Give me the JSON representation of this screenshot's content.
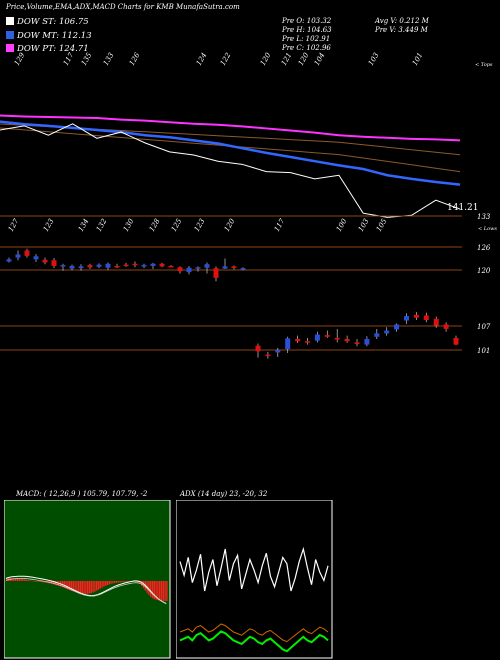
{
  "header": {
    "title": "Price,Volume,EMA,ADX,MACD Charts for KMB MunafaSutra.com",
    "prev_open": "Pre   O: 103.32",
    "prev_high": "Pre   H: 104.63",
    "prev_low": "Pre   L: 102.91",
    "prev_close": "Pre   C: 102.96",
    "avg_volume": "Avg V: 0.212  M",
    "prev_volume": "Pre   V: 3.449  M"
  },
  "legend": [
    {
      "label": "DOW ST: 106.75",
      "color": "#ffffff"
    },
    {
      "label": "DOW MT: 112.13",
      "color": "#3060e0"
    },
    {
      "label": "DOW PT: 124.71",
      "color": "#ff40ff"
    }
  ],
  "colors": {
    "up": "#2a4fd8",
    "down": "#e01010",
    "ema_fast": "#3366ff",
    "ema_slow": "#ff33ff",
    "level_line": "#8b4513",
    "adx_line": "#00ee00",
    "di_line": "#cc6600"
  },
  "chart_data": [
    {
      "type": "line",
      "title": "",
      "top_ticks": [
        "129",
        "117",
        "135",
        "133",
        "126",
        "124",
        "122",
        "120",
        "121",
        "120",
        "104",
        "103",
        "101"
      ],
      "top_axis_label": "< Tops",
      "bottom_ticks": [
        "127",
        "123",
        "134",
        "132",
        "130",
        "128",
        "125",
        "123",
        "120",
        "117",
        "100",
        "103",
        "105"
      ],
      "bottom_axis_label": "< Lows",
      "last_value_label": "141.21",
      "series": [
        {
          "values": [
            131.8,
            131.6,
            131.5,
            131.4,
            131.3,
            131.0,
            130.8,
            130.5,
            130.2,
            130.0,
            129.7,
            129.3,
            128.9,
            128.5,
            128.0,
            127.7,
            127.5,
            127.3,
            127.2,
            127.0
          ]
        },
        {
          "values": [
            130.6,
            130.1,
            129.8,
            129.4,
            129.0,
            128.6,
            128.0,
            127.6,
            127.0,
            126.4,
            125.5,
            124.6,
            123.8,
            123.0,
            122.2,
            121.5,
            120.3,
            119.6,
            119.0,
            118.5
          ]
        },
        {
          "values": [
            129.0,
            129.8,
            128.0,
            130.2,
            127.4,
            128.6,
            126.5,
            124.8,
            124.2,
            123.0,
            122.4,
            121.0,
            120.8,
            119.6,
            120.3,
            113.0,
            112.2,
            112.6,
            115.5,
            113.8
          ]
        }
      ]
    },
    {
      "type": "candlestick",
      "title": "",
      "levels": [
        "133",
        "126",
        "120",
        "107",
        "101"
      ],
      "candles": [
        {
          "o": 125.6,
          "h": 126.0,
          "l": 124.9,
          "c": 125.1,
          "dir": "up"
        },
        {
          "o": 126.0,
          "h": 127.6,
          "l": 125.4,
          "c": 126.7,
          "dir": "up"
        },
        {
          "o": 127.6,
          "h": 128.0,
          "l": 126.0,
          "c": 126.4,
          "dir": "down"
        },
        {
          "o": 126.3,
          "h": 126.8,
          "l": 125.0,
          "c": 125.6,
          "dir": "up"
        },
        {
          "o": 125.5,
          "h": 126.0,
          "l": 124.5,
          "c": 124.9,
          "dir": "down"
        },
        {
          "o": 125.4,
          "h": 125.9,
          "l": 123.6,
          "c": 124.1,
          "dir": "down"
        },
        {
          "o": 124.0,
          "h": 124.6,
          "l": 123.0,
          "c": 124.3,
          "dir": "up"
        },
        {
          "o": 124.1,
          "h": 124.4,
          "l": 123.1,
          "c": 123.5,
          "dir": "up"
        },
        {
          "o": 123.6,
          "h": 124.5,
          "l": 123.0,
          "c": 124.0,
          "dir": "up"
        },
        {
          "o": 124.3,
          "h": 124.6,
          "l": 123.4,
          "c": 123.8,
          "dir": "down"
        },
        {
          "o": 123.9,
          "h": 124.7,
          "l": 123.6,
          "c": 124.4,
          "dir": "up"
        },
        {
          "o": 124.6,
          "h": 124.9,
          "l": 123.2,
          "c": 123.7,
          "dir": "up"
        },
        {
          "o": 124.1,
          "h": 124.6,
          "l": 123.6,
          "c": 124.0,
          "dir": "down"
        },
        {
          "o": 124.4,
          "h": 124.8,
          "l": 123.9,
          "c": 124.2,
          "dir": "down"
        },
        {
          "o": 124.6,
          "h": 125.1,
          "l": 123.8,
          "c": 124.3,
          "dir": "down"
        },
        {
          "o": 124.3,
          "h": 124.6,
          "l": 123.6,
          "c": 124.0,
          "dir": "up"
        },
        {
          "o": 124.1,
          "h": 124.8,
          "l": 123.4,
          "c": 124.6,
          "dir": "up"
        },
        {
          "o": 124.6,
          "h": 124.8,
          "l": 123.8,
          "c": 124.0,
          "dir": "down"
        },
        {
          "o": 124.0,
          "h": 124.3,
          "l": 123.8,
          "c": 124.1,
          "dir": "down"
        },
        {
          "o": 123.8,
          "h": 124.0,
          "l": 122.4,
          "c": 122.9,
          "dir": "down"
        },
        {
          "o": 122.7,
          "h": 124.1,
          "l": 122.2,
          "c": 123.7,
          "dir": "up"
        },
        {
          "o": 123.5,
          "h": 124.0,
          "l": 122.8,
          "c": 123.8,
          "dir": "up"
        },
        {
          "o": 124.5,
          "h": 124.9,
          "l": 122.4,
          "c": 123.7,
          "dir": "up"
        },
        {
          "o": 123.6,
          "h": 124.0,
          "l": 120.6,
          "c": 121.4,
          "dir": "down"
        },
        {
          "o": 123.5,
          "h": 125.8,
          "l": 123.4,
          "c": 124.0,
          "dir": "up"
        },
        {
          "o": 124.0,
          "h": 124.2,
          "l": 123.3,
          "c": 123.8,
          "dir": "down"
        },
        {
          "o": 123.4,
          "h": 123.8,
          "l": 123.1,
          "c": 123.6,
          "dir": "up"
        },
        {
          "o": 102.8,
          "h": 103.2,
          "l": 100.7,
          "c": 101.8,
          "dir": "down"
        },
        {
          "o": 101.2,
          "h": 101.7,
          "l": 100.5,
          "c": 101.0,
          "dir": "down"
        },
        {
          "o": 101.6,
          "h": 102.4,
          "l": 100.8,
          "c": 102.0,
          "dir": "up"
        },
        {
          "o": 102.2,
          "h": 104.4,
          "l": 101.5,
          "c": 104.1,
          "dir": "up"
        },
        {
          "o": 104.0,
          "h": 104.6,
          "l": 103.3,
          "c": 103.6,
          "dir": "down"
        },
        {
          "o": 103.6,
          "h": 104.2,
          "l": 103.0,
          "c": 103.4,
          "dir": "down"
        },
        {
          "o": 103.7,
          "h": 105.3,
          "l": 103.4,
          "c": 104.8,
          "dir": "up"
        },
        {
          "o": 104.7,
          "h": 105.5,
          "l": 104.2,
          "c": 104.4,
          "dir": "down"
        },
        {
          "o": 104.2,
          "h": 105.8,
          "l": 103.4,
          "c": 103.9,
          "dir": "down"
        },
        {
          "o": 104.0,
          "h": 104.6,
          "l": 103.3,
          "c": 103.6,
          "dir": "down"
        },
        {
          "o": 103.4,
          "h": 104.0,
          "l": 102.7,
          "c": 103.1,
          "dir": "down"
        },
        {
          "o": 103.0,
          "h": 104.5,
          "l": 102.7,
          "c": 104.0,
          "dir": "up"
        },
        {
          "o": 104.4,
          "h": 105.8,
          "l": 104.0,
          "c": 105.0,
          "dir": "up"
        },
        {
          "o": 105.0,
          "h": 106.1,
          "l": 104.6,
          "c": 105.5,
          "dir": "up"
        },
        {
          "o": 105.7,
          "h": 106.8,
          "l": 105.3,
          "c": 106.6,
          "dir": "up"
        },
        {
          "o": 107.3,
          "h": 108.6,
          "l": 106.7,
          "c": 108.1,
          "dir": "up"
        },
        {
          "o": 108.3,
          "h": 108.8,
          "l": 107.4,
          "c": 107.8,
          "dir": "down"
        },
        {
          "o": 108.2,
          "h": 108.7,
          "l": 107.0,
          "c": 107.4,
          "dir": "down"
        },
        {
          "o": 107.6,
          "h": 108.0,
          "l": 106.0,
          "c": 106.4,
          "dir": "down"
        },
        {
          "o": 106.6,
          "h": 107.0,
          "l": 105.3,
          "c": 105.8,
          "dir": "down"
        },
        {
          "o": 104.2,
          "h": 104.6,
          "l": 102.9,
          "c": 103.0,
          "dir": "down"
        }
      ]
    },
    {
      "type": "bar",
      "title": "MACD: ( 12,26,9 ) 105.79, 107.79, -2",
      "values": [
        0.3,
        0.32,
        0.3,
        0.28,
        0.26,
        0.24,
        0.24,
        0.22,
        0.2,
        0.2,
        0.18,
        0.14,
        0.1,
        0.06,
        0.04,
        0.0,
        -0.02,
        -0.06,
        -0.08,
        -0.1,
        -0.12,
        -0.16,
        -0.18,
        -0.22,
        -0.26,
        -0.3,
        -0.34,
        -0.4,
        -0.46,
        -0.5,
        -0.56,
        -0.62,
        -0.7,
        -0.78,
        -0.86,
        -0.92,
        -0.98,
        -1.04,
        -1.1,
        -1.16,
        -1.2,
        -1.24,
        -1.26,
        -1.28,
        -1.28,
        -1.26,
        -1.24,
        -1.2,
        -1.14,
        -1.06,
        -0.96,
        -0.86,
        -0.76,
        -0.66,
        -0.56,
        -0.48,
        -0.4,
        -0.34,
        -0.28,
        -0.24,
        -0.2,
        -0.18,
        -0.16,
        -0.14,
        -0.12,
        -0.1,
        -0.08,
        -0.06,
        -0.04,
        -0.02,
        -0.02,
        -0.04,
        -0.08,
        -0.16,
        -0.3,
        -0.48,
        -0.7,
        -0.94,
        -1.18,
        -1.4,
        -1.58,
        -1.72,
        -1.82,
        -1.88,
        -1.92,
        -1.94,
        -1.96,
        -1.98,
        -2.0,
        -2.0
      ]
    },
    {
      "type": "line",
      "title": "ADX (14 day) 23, -20, 32",
      "series": [
        {
          "values": [
            40,
            42,
            44,
            40,
            46,
            48,
            44,
            40,
            42,
            46,
            50,
            48,
            44,
            40,
            38,
            36,
            40,
            44,
            42,
            38,
            36,
            40,
            42,
            38,
            34,
            30,
            28,
            32,
            36,
            40,
            44,
            40,
            38,
            42,
            46,
            44,
            40
          ]
        },
        {
          "values": [
            68,
            55,
            72,
            48,
            60,
            75,
            40,
            58,
            70,
            45,
            62,
            80,
            50,
            66,
            74,
            42,
            56,
            70,
            60,
            48,
            64,
            76,
            54,
            44,
            58,
            72,
            66,
            40,
            52,
            68,
            80,
            62,
            46,
            70,
            58,
            50,
            64
          ]
        }
      ]
    }
  ]
}
